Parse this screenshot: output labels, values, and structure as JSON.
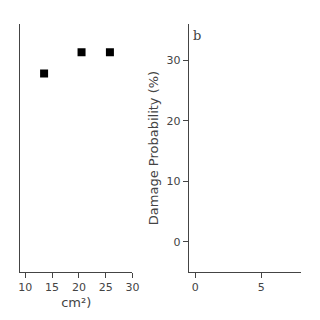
{
  "chart_data": [
    {
      "type": "scatter",
      "x": [
        13.5,
        20.5,
        25.8
      ],
      "values": [
        28.0,
        31.0,
        31.0
      ],
      "marker": "square",
      "color": "black",
      "xlabel": "cm²)",
      "xlim": [
        9,
        30
      ],
      "xticks": [
        10,
        15,
        20,
        25,
        30
      ],
      "ylim": [
        0,
        35
      ],
      "yticks": [],
      "grid": false,
      "tick_labels": "x"
    },
    {
      "type": "scatter",
      "x": [],
      "values": [],
      "ylabel": "Damage Probability (%)",
      "annotations": [
        "b"
      ],
      "xlim": [
        -0.5,
        8
      ],
      "xticks": [
        0,
        5
      ],
      "ylim": [
        -5,
        36
      ],
      "yticks": [
        0,
        10,
        20,
        30
      ],
      "grid": false
    }
  ]
}
